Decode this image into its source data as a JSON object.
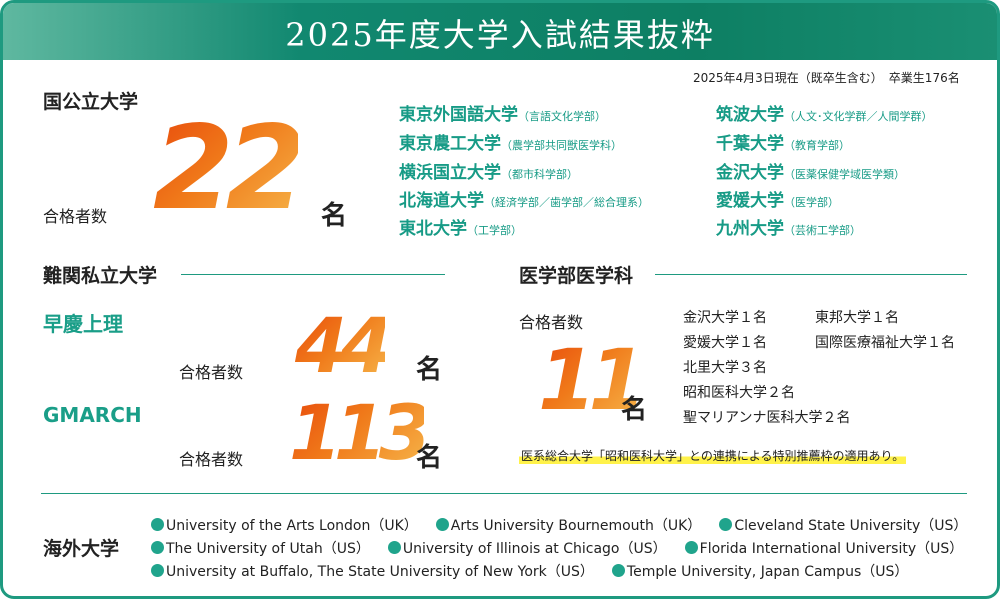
{
  "header": {
    "title": "2025年度大学入試結果抜粋"
  },
  "note": "2025年4月3日現在（既卒生含む）　卒業生176名",
  "national": {
    "title": "国公立大学",
    "label": "合格者数",
    "count": "22",
    "unit": "名",
    "universities": [
      {
        "name": "東京外国語大学",
        "dept": "（言語文化学部）"
      },
      {
        "name": "東京農工大学",
        "dept": "（農学部共同獣医学科）"
      },
      {
        "name": "横浜国立大学",
        "dept": "（都市科学部）"
      },
      {
        "name": "北海道大学",
        "dept": "（経済学部／歯学部／総合理系）"
      },
      {
        "name": "東北大学",
        "dept": "（工学部）"
      },
      {
        "name": "筑波大学",
        "dept": "（人文･文化学群／人間学群）"
      },
      {
        "name": "千葉大学",
        "dept": "（教育学部）"
      },
      {
        "name": "金沢大学",
        "dept": "（医薬保健学域医学類）"
      },
      {
        "name": "愛媛大学",
        "dept": "（医学部）"
      },
      {
        "name": "九州大学",
        "dept": "（芸術工学部）"
      }
    ]
  },
  "private": {
    "title": "難関私立大学",
    "groups": [
      {
        "name": "早慶上理",
        "label": "合格者数",
        "count": "44",
        "unit": "名"
      },
      {
        "name": "GMARCH",
        "label": "合格者数",
        "count": "113",
        "unit": "名"
      }
    ]
  },
  "medical": {
    "title": "医学部医学科",
    "label": "合格者数",
    "count": "11",
    "unit": "名",
    "items": [
      "金沢大学１名",
      "東邦大学１名",
      "愛媛大学１名",
      "国際医療福祉大学１名",
      "北里大学３名",
      "昭和医科大学２名",
      "聖マリアンナ医科大学２名"
    ],
    "note": "医系総合大学「昭和医科大学」との連携による特別推薦枠の適用あり。"
  },
  "overseas": {
    "title": "海外大学",
    "rows": [
      [
        "University of the Arts London（UK）",
        "Arts University Bournemouth（UK）",
        "Cleveland State University（US）"
      ],
      [
        "The University of Utah（US）",
        "University of Illinois at Chicago（US）",
        "Florida International University（US）"
      ],
      [
        "University at Buffalo, The State University of New York（US）",
        "Temple University, Japan Campus（US）"
      ]
    ]
  }
}
